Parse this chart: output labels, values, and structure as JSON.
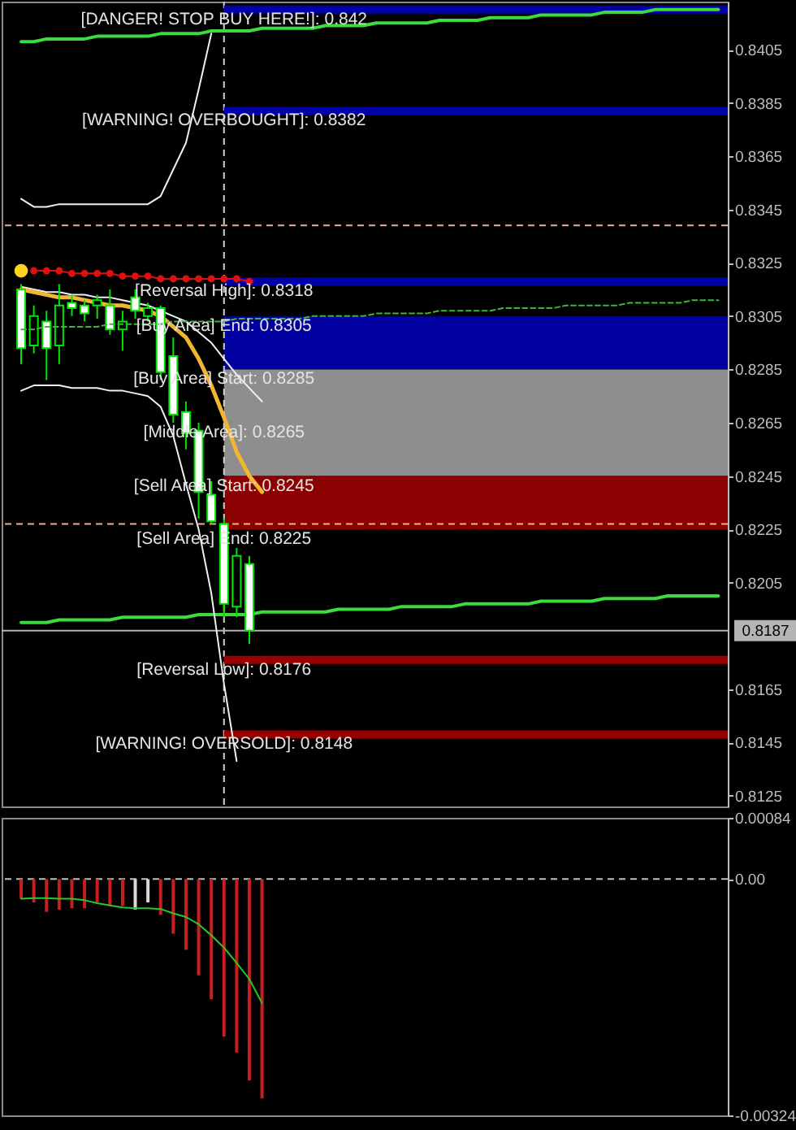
{
  "chart_data": [
    {
      "type": "candlestick",
      "categories": [
        null,
        null,
        null,
        null,
        null,
        null,
        null,
        null,
        null,
        null,
        null,
        null,
        null,
        null,
        null,
        null,
        null,
        null,
        null,
        null,
        null,
        null,
        null,
        null,
        null,
        null,
        null,
        null,
        null,
        null,
        null,
        null,
        null,
        null,
        null,
        null,
        null,
        null,
        null,
        null,
        null,
        null,
        null,
        null,
        null,
        null,
        null,
        null,
        null,
        null,
        null,
        null,
        null,
        null,
        null,
        null
      ],
      "ohlc": [
        [
          0.8315,
          0.8317,
          0.8287,
          0.8293
        ],
        [
          0.8294,
          0.8309,
          0.8291,
          0.8305
        ],
        [
          0.8303,
          0.8307,
          0.8281,
          0.8293
        ],
        [
          0.8294,
          0.8317,
          0.8287,
          0.8309
        ],
        [
          0.831,
          0.8313,
          0.8305,
          0.8308
        ],
        [
          0.8309,
          0.8311,
          0.8303,
          0.8306
        ],
        [
          0.8309,
          0.8313,
          0.8304,
          0.8311
        ],
        [
          0.8309,
          0.8315,
          0.8298,
          0.83
        ],
        [
          0.83,
          0.8307,
          0.8292,
          0.8303
        ],
        [
          0.8312,
          0.8315,
          0.8304,
          0.8307
        ],
        [
          0.8305,
          0.831,
          0.8303,
          0.8308
        ],
        [
          0.8308,
          0.8309,
          0.8281,
          0.8284
        ],
        [
          0.829,
          0.8297,
          0.8265,
          0.8268
        ],
        [
          0.8269,
          0.8273,
          0.8255,
          0.8261
        ],
        [
          0.8262,
          0.8265,
          0.8229,
          0.8239
        ],
        [
          0.8238,
          0.8243,
          0.8227,
          0.8228
        ],
        [
          0.8227,
          0.8229,
          0.8192,
          0.8197
        ],
        [
          0.8196,
          0.8218,
          0.8192,
          0.8215
        ],
        [
          0.8212,
          0.8215,
          0.8182,
          0.8187
        ],
        null,
        null,
        null,
        null,
        null,
        null,
        null,
        null,
        null,
        null,
        null,
        null,
        null,
        null,
        null,
        null,
        null,
        null,
        null,
        null,
        null,
        null,
        null,
        null,
        null,
        null,
        null,
        null,
        null,
        null,
        null,
        null,
        null,
        null,
        null,
        null,
        null
      ],
      "color": "#00e600",
      "colors": [
        "#ffffff",
        "#000000",
        "#ffffff",
        "#000000",
        "#ffffff",
        "#ffffff",
        "#000000",
        "#ffffff",
        "#000000",
        "#ffffff",
        "#000000",
        "#ffffff",
        "#ffffff",
        "#ffffff",
        "#ffffff",
        "#ffffff",
        "#ffffff",
        "#000000",
        "#ffffff",
        null,
        null,
        null,
        null,
        null,
        null,
        null,
        null,
        null,
        null,
        null,
        null,
        null,
        null,
        null,
        null,
        null,
        null,
        null,
        null,
        null,
        null,
        null,
        null,
        null,
        null,
        null,
        null,
        null,
        null,
        null,
        null,
        null,
        null,
        null,
        null,
        null
      ],
      "ylim": [
        0.8121,
        0.8423
      ],
      "yticks": [
        0.8405,
        0.8385,
        0.8365,
        0.8345,
        0.8325,
        0.8305,
        0.8285,
        0.8265,
        0.8245,
        0.8225,
        0.8205,
        0.8165,
        0.8145,
        0.8125
      ],
      "tick_labels": "y",
      "series": [
        {
          "type": "line",
          "color": "#3cdc3c",
          "values": [
            0.8408,
            0.8408,
            0.8409,
            0.8409,
            0.8409,
            0.8409,
            0.841,
            0.841,
            0.841,
            0.841,
            0.841,
            0.8411,
            0.8411,
            0.8411,
            0.8411,
            0.8412,
            0.8412,
            0.8412,
            0.8412,
            0.8413,
            0.8413,
            0.8413,
            0.8413,
            0.8413,
            0.8414,
            0.8414,
            0.8414,
            0.8414,
            0.8415,
            0.8415,
            0.8415,
            0.8415,
            0.8415,
            0.8416,
            0.8416,
            0.8416,
            0.8416,
            0.8417,
            0.8417,
            0.8417,
            0.8417,
            0.8418,
            0.8418,
            0.8418,
            0.8418,
            0.8418,
            0.8419,
            0.8419,
            0.8419,
            0.8419,
            0.842,
            0.842,
            0.842,
            0.842,
            0.842,
            0.842
          ]
        },
        {
          "type": "line",
          "color": "#3cdc3c",
          "values": [
            0.819,
            0.819,
            0.819,
            0.8191,
            0.8191,
            0.8191,
            0.8191,
            0.8191,
            0.8192,
            0.8192,
            0.8192,
            0.8192,
            0.8192,
            0.8192,
            0.8193,
            0.8193,
            0.8193,
            0.8193,
            0.8193,
            0.8194,
            0.8194,
            0.8194,
            0.8194,
            0.8194,
            0.8194,
            0.8195,
            0.8195,
            0.8195,
            0.8195,
            0.8195,
            0.8196,
            0.8196,
            0.8196,
            0.8196,
            0.8196,
            0.8197,
            0.8197,
            0.8197,
            0.8197,
            0.8197,
            0.8197,
            0.8198,
            0.8198,
            0.8198,
            0.8198,
            0.8198,
            0.8199,
            0.8199,
            0.8199,
            0.8199,
            0.8199,
            0.82,
            0.82,
            0.82,
            0.82,
            0.82
          ]
        },
        {
          "type": "line",
          "color": "#3cb43c",
          "line_style": "dashed",
          "values": [
            0.83,
            0.83,
            0.8301,
            0.8301,
            0.8301,
            0.8301,
            0.8301,
            0.8302,
            0.8302,
            0.8302,
            0.8302,
            0.8302,
            0.8303,
            0.8303,
            0.8303,
            0.8303,
            0.8303,
            0.8304,
            0.8304,
            0.8304,
            0.8304,
            0.8304,
            0.8304,
            0.8305,
            0.8305,
            0.8305,
            0.8305,
            0.8305,
            0.8306,
            0.8306,
            0.8306,
            0.8306,
            0.8306,
            0.8307,
            0.8307,
            0.8307,
            0.8307,
            0.8307,
            0.8308,
            0.8308,
            0.8308,
            0.8308,
            0.8308,
            0.8309,
            0.8309,
            0.8309,
            0.8309,
            0.8309,
            0.831,
            0.831,
            0.831,
            0.831,
            0.831,
            0.8311,
            0.8311,
            0.8311
          ]
        },
        {
          "type": "line",
          "color": "#f0f0f0",
          "values": [
            0.8349,
            0.8346,
            0.8346,
            0.8347,
            0.8347,
            0.8347,
            0.8347,
            0.8347,
            0.8347,
            0.8347,
            0.8347,
            0.835,
            0.836,
            0.837,
            0.839,
            0.8411,
            null,
            null,
            null,
            null,
            null,
            null,
            null,
            null,
            null,
            null,
            null,
            null,
            null,
            null,
            null,
            null,
            null,
            null,
            null,
            null,
            null,
            null,
            null,
            null,
            null,
            null,
            null,
            null,
            null,
            null,
            null,
            null,
            null,
            null,
            null,
            null,
            null,
            null,
            null,
            null
          ]
        },
        {
          "type": "line",
          "color": "#f0f0f0",
          "values": [
            0.8316,
            0.8315,
            0.8314,
            0.8314,
            0.8313,
            0.8313,
            0.8312,
            0.8312,
            0.8311,
            0.831,
            0.8309,
            0.8307,
            0.8305,
            0.8303,
            0.8299,
            0.8295,
            0.8289,
            0.8283,
            0.8278,
            0.8273,
            null,
            null,
            null,
            null,
            null,
            null,
            null,
            null,
            null,
            null,
            null,
            null,
            null,
            null,
            null,
            null,
            null,
            null,
            null,
            null,
            null,
            null,
            null,
            null,
            null,
            null,
            null,
            null,
            null,
            null,
            null,
            null,
            null,
            null,
            null,
            null
          ]
        },
        {
          "type": "line",
          "color": "#f0f0f0",
          "values": [
            0.8277,
            0.8279,
            0.8279,
            0.8279,
            0.8278,
            0.8278,
            0.8278,
            0.8277,
            0.8277,
            0.8276,
            0.8275,
            0.8271,
            0.826,
            0.8242,
            0.8225,
            0.8201,
            0.8167,
            0.8138,
            null,
            null,
            null,
            null,
            null,
            null,
            null,
            null,
            null,
            null,
            null,
            null,
            null,
            null,
            null,
            null,
            null,
            null,
            null,
            null,
            null,
            null,
            null,
            null,
            null,
            null,
            null,
            null,
            null,
            null,
            null,
            null,
            null,
            null,
            null,
            null,
            null,
            null
          ]
        },
        {
          "type": "line",
          "color": "#f2b632",
          "values": [
            0.8315,
            0.8314,
            0.8313,
            0.8312,
            0.8312,
            0.8311,
            0.831,
            0.8309,
            0.8309,
            0.8308,
            0.8307,
            0.8305,
            0.8301,
            0.8297,
            0.8289,
            0.8279,
            0.8267,
            0.8254,
            0.8245,
            0.8239,
            null,
            null,
            null,
            null,
            null,
            null,
            null,
            null,
            null,
            null,
            null,
            null,
            null,
            null,
            null,
            null,
            null,
            null,
            null,
            null,
            null,
            null,
            null,
            null,
            null,
            null,
            null,
            null,
            null,
            null,
            null,
            null,
            null,
            null,
            null,
            null
          ]
        },
        {
          "type": "line",
          "color": "#e01010",
          "marker": "circle",
          "values": [
            null,
            0.8322,
            0.8322,
            0.8322,
            0.8321,
            0.8321,
            0.8321,
            0.8321,
            0.832,
            0.832,
            0.832,
            0.8319,
            0.8319,
            0.8319,
            0.8319,
            0.8319,
            0.8319,
            0.8319,
            0.8318,
            null,
            null,
            null,
            null,
            null,
            null,
            null,
            null,
            null,
            null,
            null,
            null,
            null,
            null,
            null,
            null,
            null,
            null,
            null,
            null,
            null,
            null,
            null,
            null,
            null,
            null,
            null,
            null,
            null,
            null,
            null,
            null,
            null,
            null,
            null,
            null,
            null
          ]
        },
        {
          "type": "scatter",
          "color": "#ffd21e",
          "values": [
            0.8322,
            null,
            null,
            null,
            null,
            null,
            null,
            null,
            null,
            null,
            null,
            null,
            null,
            null,
            null,
            null,
            null,
            null,
            null,
            null,
            null,
            null,
            null,
            null,
            null,
            null,
            null,
            null,
            null,
            null,
            null,
            null,
            null,
            null,
            null,
            null,
            null,
            null,
            null,
            null,
            null,
            null,
            null,
            null,
            null,
            null,
            null,
            null,
            null,
            null,
            null,
            null,
            null,
            null,
            null,
            null
          ]
        }
      ],
      "bands": [
        {
          "axis": "y",
          "from": 0.8285,
          "to": 0.8305,
          "color": "#0000a0"
        },
        {
          "axis": "y",
          "from": 0.8245,
          "to": 0.8285,
          "color": "#8e8e8e"
        },
        {
          "axis": "y",
          "from": 0.8225,
          "to": 0.8245,
          "color": "#8b0000"
        }
      ],
      "ref_lines": [
        {
          "axis": "y",
          "value": 0.842,
          "label": "[DANGER! STOP BUY HERE!]: 0.842",
          "color": "#0000a8"
        },
        {
          "axis": "y",
          "value": 0.8382,
          "label": "[WARNING! OVERBOUGHT]: 0.8382",
          "color": "#0000a8"
        },
        {
          "axis": "y",
          "value": 0.8318,
          "label": "[Reversal High]: 0.8318",
          "color": "#0000a8"
        },
        {
          "axis": "y",
          "value": 0.8176,
          "label": "[Reversal Low]: 0.8176",
          "color": "#9b0000"
        },
        {
          "axis": "y",
          "value": 0.8148,
          "label": "[WARNING! OVERSOLD]: 0.8148",
          "color": "#9b0000"
        },
        {
          "axis": "y",
          "value": 0.8339,
          "color": "#f0b090",
          "line_style": "dashed"
        },
        {
          "axis": "y",
          "value": 0.8227,
          "color": "#f0b090",
          "line_style": "dashed"
        },
        {
          "axis": "y",
          "value": 0.8187,
          "label": "0.8187",
          "color": "#b4b4b4",
          "line_style": "solid"
        }
      ],
      "annotations": [
        {
          "text": "[Buy Area] End: 0.8305",
          "y": 0.8305
        },
        {
          "text": "[Buy Area] Start: 0.8285",
          "y": 0.8285
        },
        {
          "text": "[Middle Area]: 0.8265",
          "y": 0.8265
        },
        {
          "text": "[Sell Area] Start: 0.8245",
          "y": 0.8245
        },
        {
          "text": "[Sell Area] End: 0.8225",
          "y": 0.8225
        }
      ]
    },
    {
      "type": "bar",
      "categories": [
        null,
        null,
        null,
        null,
        null,
        null,
        null,
        null,
        null,
        null,
        null,
        null,
        null,
        null,
        null,
        null,
        null,
        null,
        null,
        null,
        null,
        null,
        null,
        null,
        null,
        null,
        null,
        null,
        null,
        null,
        null,
        null,
        null,
        null,
        null,
        null,
        null,
        null,
        null,
        null,
        null,
        null,
        null,
        null,
        null,
        null,
        null,
        null,
        null,
        null,
        null,
        null,
        null,
        null,
        null,
        null
      ],
      "ylim": [
        -0.00324,
        0.00084
      ],
      "yticks": [
        0.00084,
        {
          "value": 0,
          "label": "0.00"
        },
        -0.00324
      ],
      "tick_labels": "y",
      "series": [
        {
          "type": "bar",
          "values": [
            -0.00027,
            -0.00032,
            -0.00045,
            -0.00042,
            -0.0004,
            -0.0004,
            -0.00032,
            -0.00037,
            -0.00037,
            -0.00042,
            -0.00032,
            -0.00049,
            -0.00075,
            -0.00097,
            -0.00132,
            -0.00165,
            -0.00216,
            -0.00238,
            -0.00276,
            -0.00301,
            null,
            null,
            null,
            null,
            null,
            null,
            null,
            null,
            null,
            null,
            null,
            null,
            null,
            null,
            null,
            null,
            null,
            null,
            null,
            null,
            null,
            null,
            null,
            null,
            null,
            null,
            null,
            null,
            null,
            null,
            null,
            null,
            null,
            null,
            null,
            null
          ],
          "colors": [
            "#c81e1e",
            "#c81e1e",
            "#c81e1e",
            "#c81e1e",
            "#c81e1e",
            "#c81e1e",
            "#c81e1e",
            "#c81e1e",
            "#c81e1e",
            "#d8d8d8",
            "#d8d8d8",
            "#c81e1e",
            "#c81e1e",
            "#c81e1e",
            "#c81e1e",
            "#c81e1e",
            "#c81e1e",
            "#c81e1e",
            "#c81e1e",
            "#c81e1e",
            null,
            null,
            null,
            null,
            null,
            null,
            null,
            null,
            null,
            null,
            null,
            null,
            null,
            null,
            null,
            null,
            null,
            null,
            null,
            null,
            null,
            null,
            null,
            null,
            null,
            null,
            null,
            null,
            null,
            null,
            null,
            null,
            null,
            null,
            null,
            null
          ]
        },
        {
          "type": "line",
          "color": "#28c828",
          "values": [
            -0.00027,
            -0.00026,
            -0.00026,
            -0.00027,
            -0.00027,
            -0.00029,
            -0.00033,
            -0.00036,
            -0.00039,
            -0.0004,
            -0.0004,
            -0.00041,
            -0.00047,
            -0.00052,
            -0.00062,
            -0.00077,
            -0.00094,
            -0.00115,
            -0.00137,
            -0.0017,
            null,
            null,
            null,
            null,
            null,
            null,
            null,
            null,
            null,
            null,
            null,
            null,
            null,
            null,
            null,
            null,
            null,
            null,
            null,
            null,
            null,
            null,
            null,
            null,
            null,
            null,
            null,
            null,
            null,
            null,
            null,
            null,
            null,
            null,
            null,
            null
          ]
        }
      ],
      "ref_lines": [
        {
          "axis": "y",
          "value": 0,
          "color": "#c0c0c0",
          "line_style": "dashed"
        }
      ]
    }
  ]
}
